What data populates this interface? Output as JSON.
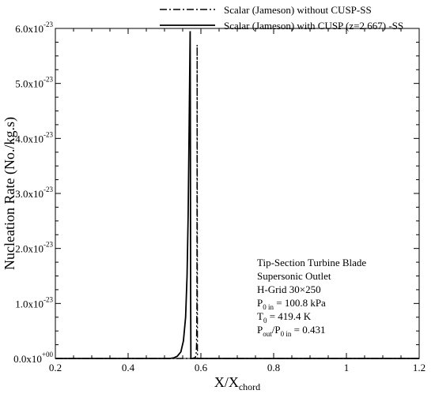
{
  "chart_data": {
    "type": "line",
    "xlabel": {
      "main": "X/X",
      "sub": "chord"
    },
    "ylabel": "Nucleation Rate (No./kg.s)",
    "xlim": [
      0.2,
      1.2
    ],
    "ylim": [
      0,
      6e-23
    ],
    "grid": false,
    "legend_position": "top",
    "x_ticks": [
      {
        "value": 0.2,
        "label": "0.2"
      },
      {
        "value": 0.4,
        "label": "0.4"
      },
      {
        "value": 0.6,
        "label": "0.6"
      },
      {
        "value": 0.8,
        "label": "0.8"
      },
      {
        "value": 1.0,
        "label": "1"
      },
      {
        "value": 1.2,
        "label": "1.2"
      }
    ],
    "y_ticks": [
      {
        "value": 0,
        "mant": "0.0x10",
        "exp": "+00"
      },
      {
        "value": 1e-23,
        "mant": "1.0x10",
        "exp": "-23"
      },
      {
        "value": 2e-23,
        "mant": "2.0x10",
        "exp": "-23"
      },
      {
        "value": 3e-23,
        "mant": "3.0x10",
        "exp": "-23"
      },
      {
        "value": 4e-23,
        "mant": "4.0x10",
        "exp": "-23"
      },
      {
        "value": 5e-23,
        "mant": "5.0x10",
        "exp": "-23"
      },
      {
        "value": 6e-23,
        "mant": "6.0x10",
        "exp": "-23"
      }
    ],
    "series": [
      {
        "name": "Scalar (Jameson) without CUSP-SS",
        "style": "dashdot",
        "x": [
          0.2,
          0.56,
          0.575,
          0.585,
          0.587,
          0.588,
          0.589,
          0.5895,
          0.5897,
          0.59,
          0.5905,
          1.2
        ],
        "y": [
          0,
          0,
          0,
          2e-25,
          8e-25,
          2.5e-24,
          1e-23,
          3.5e-23,
          5.7e-23,
          3e-23,
          0,
          0
        ]
      },
      {
        "name": "Scalar (Jameson) with CUSP (z=2.667) -SS",
        "style": "solid",
        "x": [
          0.2,
          0.515,
          0.525,
          0.535,
          0.545,
          0.552,
          0.558,
          0.562,
          0.565,
          0.567,
          0.569,
          0.5705,
          0.5712,
          0.5718,
          0.5725,
          1.2
        ],
        "y": [
          0,
          0,
          1e-25,
          4e-25,
          1.2e-24,
          3.2e-24,
          7.5e-24,
          1.5e-23,
          2.6e-23,
          3.8e-23,
          5e-23,
          5.95e-23,
          4e-23,
          1.2e-23,
          0,
          0
        ]
      }
    ]
  },
  "annotation": [
    {
      "text": "Tip-Section Turbine Blade"
    },
    {
      "text": "Supersonic Outlet"
    },
    {
      "text": "H-Grid 30×250"
    },
    {
      "parts": [
        {
          "t": "P"
        },
        {
          "t": "0 in",
          "sub": true
        },
        {
          "t": " = 100.8 kPa"
        }
      ]
    },
    {
      "parts": [
        {
          "t": "T"
        },
        {
          "t": "0",
          "sub": true
        },
        {
          "t": " = 419.4 K"
        }
      ]
    },
    {
      "parts": [
        {
          "t": "P"
        },
        {
          "t": "out",
          "sub": true
        },
        {
          "t": "/P"
        },
        {
          "t": "0 in",
          "sub": true
        },
        {
          "t": " = 0.431"
        }
      ]
    }
  ]
}
